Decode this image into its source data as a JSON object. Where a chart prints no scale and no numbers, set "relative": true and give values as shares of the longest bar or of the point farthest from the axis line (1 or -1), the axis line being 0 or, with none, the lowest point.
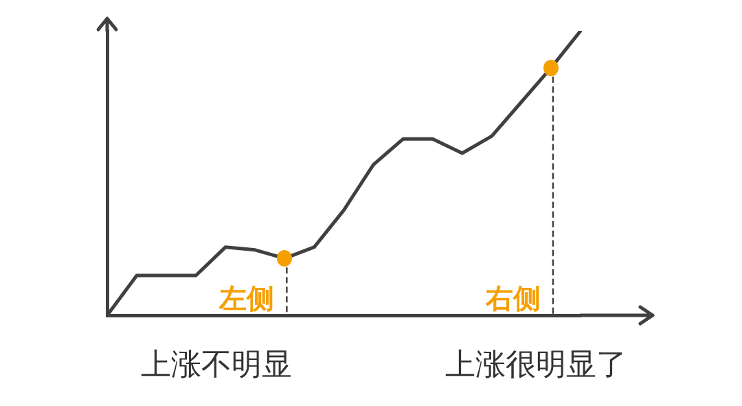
{
  "chart_data": {
    "type": "line",
    "relative": true,
    "categories": [
      null,
      null,
      null,
      null,
      null,
      null,
      null,
      null,
      null,
      null,
      null,
      null,
      null,
      null,
      null,
      null,
      null
    ],
    "series": [
      {
        "color": "#404040",
        "values": [
          0,
          0.14,
          0.14,
          0.14,
          0.24,
          0.23,
          0.2,
          0.24,
          0.37,
          0.53,
          0.62,
          0.62,
          0.57,
          0.63,
          0.75,
          0.87,
          1
        ]
      }
    ],
    "annotations": [
      "左侧",
      "右侧",
      "上涨不明显",
      "上涨很明显了"
    ],
    "legend": false
  }
}
